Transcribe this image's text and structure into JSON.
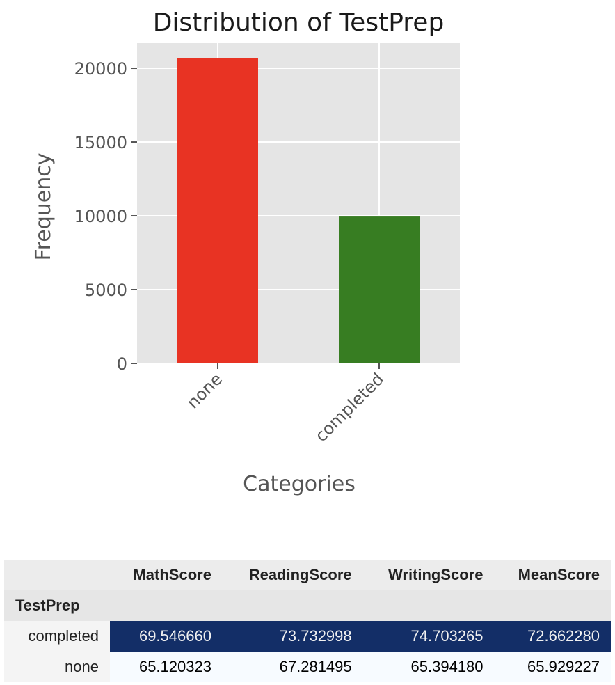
{
  "chart_data": {
    "type": "bar",
    "title": "Distribution of TestPrep",
    "xlabel": "Categories",
    "ylabel": "Frequency",
    "categories": [
      "none",
      "completed"
    ],
    "values": [
      20700,
      9950
    ],
    "bar_colors": [
      "#e83323",
      "#377d22"
    ],
    "ylim": [
      0,
      21700
    ],
    "yticks": [
      0,
      5000,
      10000,
      15000,
      20000
    ],
    "ytick_labels": [
      "0",
      "5000",
      "10000",
      "15000",
      "20000"
    ],
    "grid": true,
    "style": "ggplot",
    "background_color": "#e5e5e5",
    "grid_color": "#ffffff"
  },
  "table": {
    "index_name": "TestPrep",
    "columns": [
      "MathScore",
      "ReadingScore",
      "WritingScore",
      "MeanScore"
    ],
    "rows": [
      {
        "label": "completed",
        "values": [
          "69.546660",
          "73.732998",
          "74.703265",
          "72.662280"
        ],
        "bg": "#132e67",
        "fg": "#f1f1f1"
      },
      {
        "label": "none",
        "values": [
          "65.120323",
          "67.281495",
          "65.394180",
          "65.929227"
        ],
        "bg": "#f7fbff",
        "fg": "#000000"
      }
    ]
  }
}
